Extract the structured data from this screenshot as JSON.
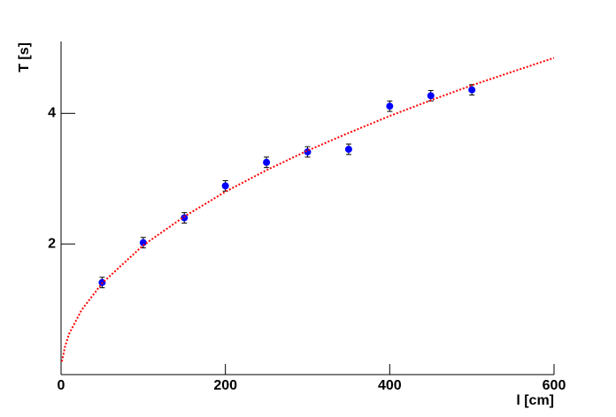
{
  "chart_data": {
    "type": "scatter",
    "xlabel": "l [cm]",
    "ylabel": "T [s]",
    "xlim": [
      0,
      600
    ],
    "ylim": [
      0,
      5.1
    ],
    "xticks": [
      0,
      200,
      400,
      600
    ],
    "yticks": [
      2,
      4
    ],
    "series": [
      {
        "name": "data",
        "color": "#0000ff",
        "x": [
          50,
          100,
          150,
          200,
          250,
          300,
          350,
          400,
          450,
          500
        ],
        "values": [
          1.41,
          2.02,
          2.4,
          2.89,
          3.25,
          3.41,
          3.45,
          4.11,
          4.27,
          4.36
        ],
        "errors": [
          0.08,
          0.08,
          0.08,
          0.08,
          0.08,
          0.08,
          0.08,
          0.08,
          0.08,
          0.08
        ]
      },
      {
        "name": "fit",
        "color": "#ff0000",
        "style": "dotted",
        "x": [
          1,
          5,
          10,
          25,
          50,
          100,
          150,
          200,
          250,
          300,
          350,
          400,
          450,
          500,
          550,
          600
        ],
        "values": [
          0.2,
          0.44,
          0.63,
          0.99,
          1.4,
          1.98,
          2.42,
          2.8,
          3.13,
          3.43,
          3.7,
          3.96,
          4.2,
          4.43,
          4.64,
          4.85
        ]
      }
    ]
  }
}
